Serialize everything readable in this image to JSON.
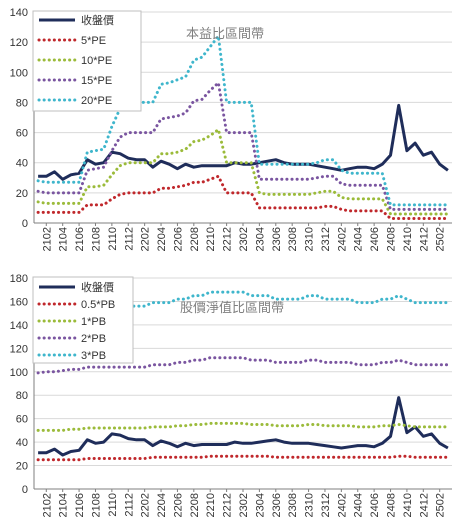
{
  "colors": {
    "price": "#1f2d5a",
    "s1": "#c0282c",
    "s2": "#9bbb3a",
    "s3": "#7a55a0",
    "s4": "#3fb6cc",
    "grid": "#d9d9d9",
    "axis": "#7f7f7f",
    "frame": "#7f7f7f"
  },
  "chart_data": [
    {
      "type": "line",
      "title": "本益比區間帶",
      "xlabel": "",
      "ylabel": "",
      "ylim": [
        0,
        140
      ],
      "yticks": [
        0,
        20,
        40,
        60,
        80,
        100,
        120,
        140
      ],
      "categories": [
        "2101",
        "2102",
        "2103",
        "2104",
        "2105",
        "2106",
        "2107",
        "2108",
        "2109",
        "2110",
        "2111",
        "2112",
        "2201",
        "2202",
        "2203",
        "2204",
        "2205",
        "2206",
        "2207",
        "2208",
        "2209",
        "2210",
        "2211",
        "2212",
        "2301",
        "2302",
        "2303",
        "2304",
        "2305",
        "2306",
        "2307",
        "2308",
        "2309",
        "2310",
        "2311",
        "2312",
        "2401",
        "2402",
        "2403",
        "2404",
        "2405",
        "2406",
        "2407",
        "2408",
        "2409",
        "2410",
        "2411",
        "2412",
        "2501",
        "2502",
        "2503"
      ],
      "tick_labels": [
        "2102",
        "2104",
        "2106",
        "2108",
        "2110",
        "2112",
        "2202",
        "2204",
        "2206",
        "2208",
        "2210",
        "2212",
        "2302",
        "2304",
        "2306",
        "2308",
        "2310",
        "2312",
        "2402",
        "2404",
        "2406",
        "2408",
        "2410",
        "2412",
        "2502"
      ],
      "legend_position": "top-left",
      "series": [
        {
          "name": "收盤價",
          "color_key": "price",
          "style": "solid",
          "values": [
            31,
            31,
            34,
            29,
            32,
            33,
            42,
            39,
            40,
            47,
            46,
            43,
            42,
            42,
            37,
            41,
            39,
            36,
            39,
            37,
            38,
            38,
            38,
            38,
            40,
            39,
            39,
            40,
            41,
            42,
            40,
            39,
            39,
            39,
            38,
            37,
            36,
            35,
            36,
            37,
            37,
            36,
            39,
            45,
            78,
            48,
            53,
            45,
            47,
            39,
            35
          ]
        },
        {
          "name": "5*PE",
          "color_key": "s1",
          "style": "dotted",
          "values": [
            7,
            7,
            7,
            7,
            7,
            7,
            12,
            12,
            12,
            16,
            19,
            20,
            20,
            20,
            20,
            23,
            23,
            24,
            25,
            27,
            27,
            29,
            31,
            20,
            20,
            20,
            20,
            10,
            10,
            10,
            10,
            10,
            10,
            10,
            10,
            11,
            11,
            9,
            8,
            8,
            8,
            8,
            8,
            3,
            3,
            3,
            3,
            3,
            3,
            3,
            3
          ]
        },
        {
          "name": "10*PE",
          "color_key": "s2",
          "style": "dotted",
          "values": [
            14,
            13,
            13,
            13,
            13,
            13,
            24,
            24,
            25,
            32,
            38,
            40,
            40,
            40,
            40,
            46,
            46,
            47,
            49,
            54,
            55,
            58,
            62,
            40,
            40,
            40,
            40,
            20,
            19,
            19,
            19,
            19,
            19,
            19,
            20,
            21,
            21,
            17,
            16,
            16,
            16,
            16,
            16,
            6,
            6,
            6,
            6,
            6,
            6,
            6,
            6
          ]
        },
        {
          "name": "15*PE",
          "color_key": "s3",
          "style": "dotted",
          "values": [
            21,
            20,
            20,
            20,
            20,
            20,
            35,
            36,
            37,
            48,
            57,
            60,
            60,
            60,
            60,
            69,
            70,
            71,
            73,
            81,
            82,
            88,
            93,
            60,
            60,
            60,
            60,
            29,
            29,
            29,
            29,
            29,
            29,
            29,
            30,
            31,
            31,
            26,
            25,
            25,
            25,
            25,
            25,
            9,
            9,
            9,
            9,
            9,
            9,
            9,
            9
          ]
        },
        {
          "name": "20*PE",
          "color_key": "s4",
          "style": "dotted",
          "values": [
            28,
            27,
            27,
            27,
            27,
            27,
            47,
            48,
            49,
            64,
            76,
            80,
            80,
            80,
            80,
            92,
            93,
            95,
            97,
            108,
            110,
            117,
            124,
            80,
            80,
            80,
            80,
            39,
            39,
            39,
            39,
            39,
            39,
            39,
            40,
            42,
            42,
            35,
            33,
            33,
            33,
            33,
            33,
            12,
            12,
            12,
            12,
            12,
            12,
            12,
            12
          ]
        }
      ]
    },
    {
      "type": "line",
      "title": "股價淨值比區間帶",
      "xlabel": "",
      "ylabel": "",
      "ylim": [
        0,
        180
      ],
      "yticks": [
        0,
        20,
        40,
        60,
        80,
        100,
        120,
        140,
        160,
        180
      ],
      "categories": [
        "2101",
        "2102",
        "2103",
        "2104",
        "2105",
        "2106",
        "2107",
        "2108",
        "2109",
        "2110",
        "2111",
        "2112",
        "2201",
        "2202",
        "2203",
        "2204",
        "2205",
        "2206",
        "2207",
        "2208",
        "2209",
        "2210",
        "2211",
        "2212",
        "2301",
        "2302",
        "2303",
        "2304",
        "2305",
        "2306",
        "2307",
        "2308",
        "2309",
        "2310",
        "2311",
        "2312",
        "2401",
        "2402",
        "2403",
        "2404",
        "2405",
        "2406",
        "2407",
        "2408",
        "2409",
        "2410",
        "2411",
        "2412",
        "2501",
        "2502",
        "2503"
      ],
      "tick_labels": [
        "2102",
        "2104",
        "2106",
        "2108",
        "2110",
        "2112",
        "2202",
        "2204",
        "2206",
        "2208",
        "2210",
        "2212",
        "2302",
        "2304",
        "2306",
        "2308",
        "2310",
        "2312",
        "2402",
        "2404",
        "2406",
        "2408",
        "2410",
        "2412",
        "2502"
      ],
      "legend_position": "top-left",
      "series": [
        {
          "name": "收盤價",
          "color_key": "price",
          "style": "solid",
          "values": [
            31,
            31,
            34,
            29,
            32,
            33,
            42,
            39,
            40,
            47,
            46,
            43,
            42,
            42,
            37,
            41,
            39,
            36,
            39,
            37,
            38,
            38,
            38,
            38,
            40,
            39,
            39,
            40,
            41,
            42,
            40,
            39,
            39,
            39,
            38,
            37,
            36,
            35,
            36,
            37,
            37,
            36,
            39,
            45,
            78,
            48,
            53,
            45,
            47,
            39,
            35
          ]
        },
        {
          "name": "0.5*PB",
          "color_key": "s1",
          "style": "dotted",
          "values": [
            25,
            25,
            25,
            25,
            25,
            25,
            26,
            26,
            26,
            26,
            26,
            26,
            26,
            26,
            27,
            27,
            27,
            27,
            27,
            27,
            27,
            28,
            28,
            28,
            28,
            28,
            28,
            28,
            28,
            27,
            27,
            27,
            27,
            27,
            27,
            27,
            27,
            27,
            27,
            27,
            27,
            27,
            27,
            27,
            28,
            28,
            27,
            27,
            27,
            27,
            27
          ]
        },
        {
          "name": "1*PB",
          "color_key": "s2",
          "style": "dotted",
          "values": [
            50,
            50,
            50,
            50,
            51,
            51,
            52,
            52,
            52,
            52,
            52,
            52,
            52,
            52,
            53,
            53,
            53,
            54,
            54,
            55,
            55,
            56,
            56,
            56,
            56,
            56,
            55,
            55,
            55,
            54,
            54,
            54,
            54,
            55,
            55,
            54,
            54,
            54,
            54,
            53,
            53,
            53,
            54,
            54,
            55,
            54,
            53,
            53,
            53,
            53,
            53
          ]
        },
        {
          "name": "2*PB",
          "color_key": "s3",
          "style": "dotted",
          "values": [
            99,
            100,
            100,
            101,
            102,
            102,
            104,
            104,
            104,
            104,
            104,
            104,
            104,
            104,
            106,
            106,
            106,
            108,
            108,
            110,
            110,
            112,
            112,
            112,
            112,
            112,
            110,
            110,
            110,
            108,
            108,
            108,
            108,
            110,
            110,
            108,
            108,
            108,
            108,
            106,
            106,
            106,
            108,
            108,
            110,
            108,
            106,
            106,
            106,
            106,
            106
          ]
        },
        {
          "name": "3*PB",
          "color_key": "s4",
          "style": "dotted",
          "values": [
            149,
            150,
            150,
            151,
            153,
            153,
            156,
            156,
            156,
            156,
            156,
            156,
            156,
            156,
            159,
            159,
            159,
            162,
            162,
            165,
            165,
            168,
            168,
            168,
            168,
            168,
            165,
            165,
            165,
            162,
            162,
            162,
            162,
            165,
            165,
            162,
            162,
            162,
            162,
            159,
            159,
            159,
            162,
            162,
            165,
            162,
            159,
            159,
            159,
            159,
            159
          ]
        }
      ]
    }
  ]
}
